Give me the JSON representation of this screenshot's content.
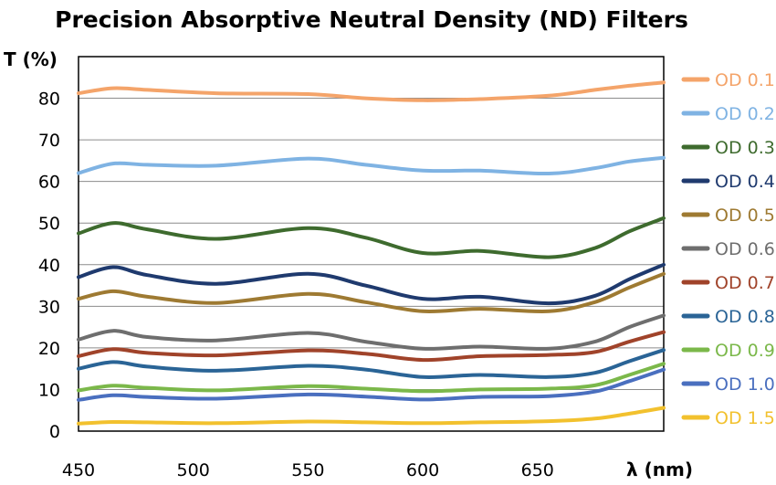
{
  "chart_data": {
    "type": "line",
    "title": "Precision Absorptive Neutral Density (ND) Filters",
    "ylabel": "T (%)",
    "xlabel": "λ (nm)",
    "xlim": [
      450,
      705
    ],
    "ylim": [
      0,
      90
    ],
    "x_ticks": [
      450,
      500,
      550,
      600,
      650
    ],
    "y_ticks": [
      0,
      10,
      20,
      30,
      40,
      50,
      60,
      70,
      80
    ],
    "grid": "horizontal",
    "legend_position": "right",
    "x": [
      450,
      465,
      480,
      510,
      550,
      575,
      600,
      625,
      655,
      675,
      690,
      705
    ],
    "series": [
      {
        "name": "OD 0.1",
        "color": "#F4A46A",
        "values": [
          81.2,
          82.4,
          82.0,
          81.2,
          81.0,
          80.0,
          79.5,
          79.8,
          80.6,
          82.0,
          83.0,
          83.8
        ]
      },
      {
        "name": "OD 0.2",
        "color": "#7FB3E3",
        "values": [
          62.0,
          64.3,
          64.0,
          63.8,
          65.5,
          64.0,
          62.6,
          62.6,
          61.9,
          63.2,
          64.8,
          65.7
        ]
      },
      {
        "name": "OD 0.3",
        "color": "#3E6B2E",
        "values": [
          47.5,
          50.0,
          48.5,
          46.2,
          48.8,
          46.5,
          42.8,
          43.3,
          41.8,
          44.0,
          48.0,
          51.2
        ]
      },
      {
        "name": "OD 0.4",
        "color": "#1F3A6E",
        "values": [
          37.0,
          39.4,
          37.5,
          35.4,
          37.8,
          35.0,
          31.8,
          32.3,
          30.7,
          32.5,
          36.5,
          40.0
        ]
      },
      {
        "name": "OD 0.5",
        "color": "#9E7A32",
        "values": [
          31.8,
          33.6,
          32.3,
          30.8,
          33.0,
          31.0,
          28.8,
          29.4,
          28.8,
          31.0,
          34.5,
          37.8
        ]
      },
      {
        "name": "OD 0.6",
        "color": "#6E6E6E",
        "values": [
          22.0,
          24.1,
          22.6,
          21.8,
          23.6,
          21.5,
          19.8,
          20.3,
          19.8,
          21.5,
          25.0,
          27.8
        ]
      },
      {
        "name": "OD 0.7",
        "color": "#A0432A",
        "values": [
          18.0,
          19.7,
          18.8,
          18.2,
          19.4,
          18.6,
          17.1,
          18.0,
          18.3,
          19.0,
          21.5,
          23.8
        ]
      },
      {
        "name": "OD 0.8",
        "color": "#2A6496",
        "values": [
          15.0,
          16.6,
          15.5,
          14.5,
          15.7,
          14.8,
          13.0,
          13.5,
          13.0,
          14.0,
          16.8,
          19.5
        ]
      },
      {
        "name": "OD 0.9",
        "color": "#7BB84A",
        "values": [
          9.8,
          10.9,
          10.4,
          9.8,
          10.8,
          10.2,
          9.6,
          10.0,
          10.2,
          11.0,
          13.5,
          16.2
        ]
      },
      {
        "name": "OD 1.0",
        "color": "#4A6FBF",
        "values": [
          7.5,
          8.6,
          8.2,
          7.8,
          8.8,
          8.3,
          7.6,
          8.2,
          8.4,
          9.5,
          12.0,
          14.8
        ]
      },
      {
        "name": "OD 1.5",
        "color": "#F2C12E",
        "values": [
          1.8,
          2.2,
          2.1,
          1.9,
          2.3,
          2.1,
          1.9,
          2.1,
          2.4,
          3.0,
          4.2,
          5.6
        ]
      }
    ]
  }
}
